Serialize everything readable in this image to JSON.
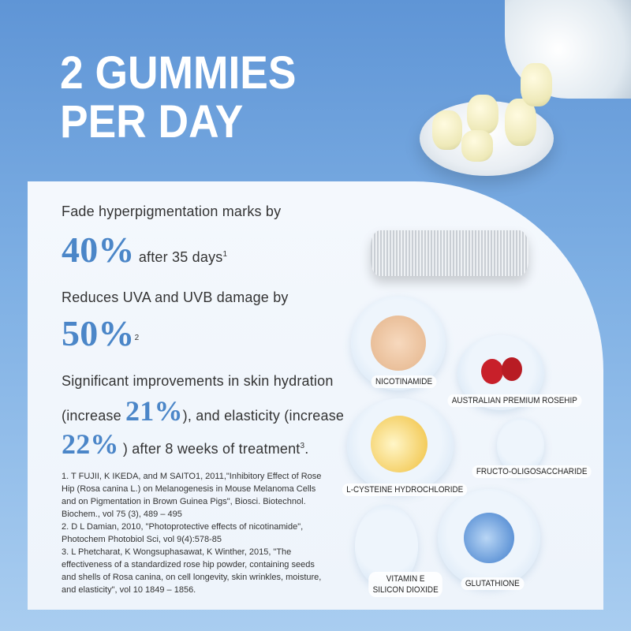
{
  "headline": {
    "line1": "2 GUMMIES",
    "line2": "PER DAY"
  },
  "claims": [
    {
      "text": "Fade hyperpigmentation marks by",
      "value": "40%",
      "suffix": "after 35 days",
      "ref": "1"
    },
    {
      "text": "Reduces UVA and UVB damage by",
      "value": "50%",
      "ref": "2"
    },
    {
      "text": "Significant improvements in skin hydration",
      "prefix": "(increase",
      "value": "21%",
      "middle": "), and elasticity (increase",
      "value2": "22%",
      "suffix": ") after 8 weeks of treatment",
      "ref": "3"
    }
  ],
  "references": [
    "1. T FUJII, K IKEDA, and M SAITO1, 2011,\"Inhibitory Effect of Rose Hip (Rosa canina L.) on Melanogenesis in Mouse Melanoma Cells and on Pigmentation in Brown Guinea Pigs\", Biosci. Biotechnol. Biochem., vol 75 (3), 489 – 495",
    "2. D L Damian, 2010, \"Photoprotective effects of nicotinamide\", Photochem Photobiol Sci, vol 9(4):578-85",
    "3. L Phetcharat, K Wongsuphasawat, K Winther, 2015, \"The effectiveness of a standardized rose hip powder, containing seeds and shells of Rosa canina, on cell longevity, skin wrinkles, moisture, and elasticity\", vol 10 1849 – 1856."
  ],
  "ingredients": [
    "NICOTINAMIDE",
    "AUSTRALIAN PREMIUM ROSEHIP",
    "L-CYSTEINE HYDROCHLORIDE",
    "FRUCTO-OLIGOSACCHARIDE",
    "VITAMIN E",
    "SILICON DIOXIDE",
    "GLUTATHIONE"
  ],
  "colors": {
    "accent": "#4b86c8",
    "background": "#6fa3dd"
  }
}
